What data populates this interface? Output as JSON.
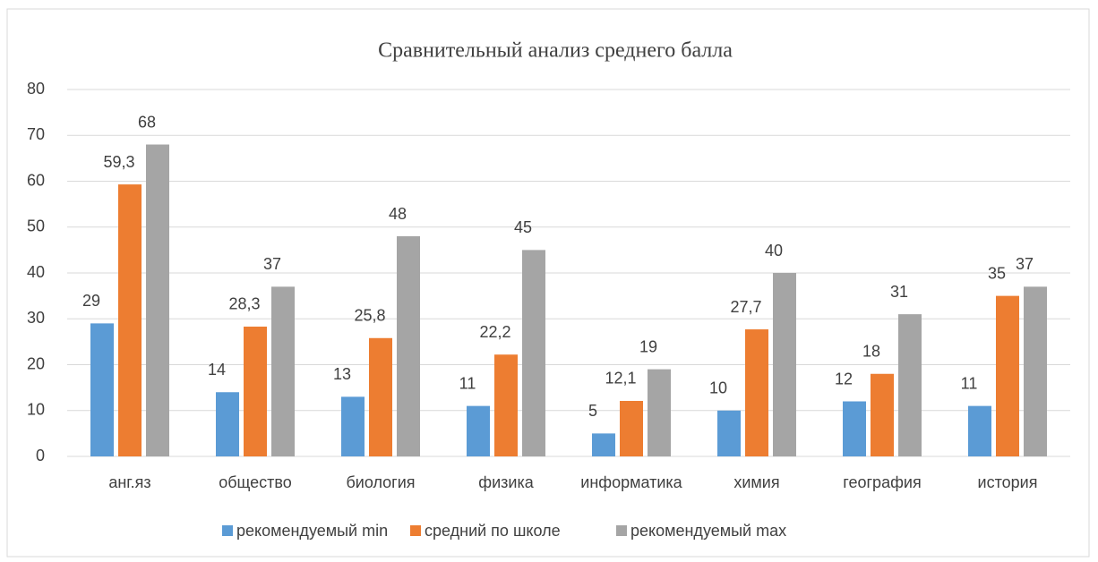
{
  "chart_data": {
    "type": "bar",
    "title": "Сравнительный анализ  среднего балла",
    "categories": [
      "анг.яз",
      "общество",
      "биология",
      "физика",
      "информатика",
      "химия",
      "география",
      "история"
    ],
    "series": [
      {
        "name": "рекомендуемый min",
        "color": "#5b9bd5",
        "values": [
          29,
          14,
          13,
          11,
          5,
          10,
          12,
          11
        ]
      },
      {
        "name": "средний по школе",
        "color": "#ed7d31",
        "values": [
          59.3,
          28.3,
          25.8,
          22.2,
          12.1,
          27.7,
          18,
          35
        ],
        "value_labels": [
          "59,3",
          "28,3",
          "25,8",
          "22,2",
          "12,1",
          "27,7",
          "18",
          "35"
        ]
      },
      {
        "name": "рекомендуемый max",
        "color": "#a5a5a5",
        "values": [
          68,
          37,
          48,
          45,
          19,
          40,
          31,
          37
        ]
      }
    ],
    "ylim": [
      0,
      80
    ],
    "yticks": [
      0,
      10,
      20,
      30,
      40,
      50,
      60,
      70,
      80
    ],
    "grid": true,
    "legend": "bottom"
  }
}
